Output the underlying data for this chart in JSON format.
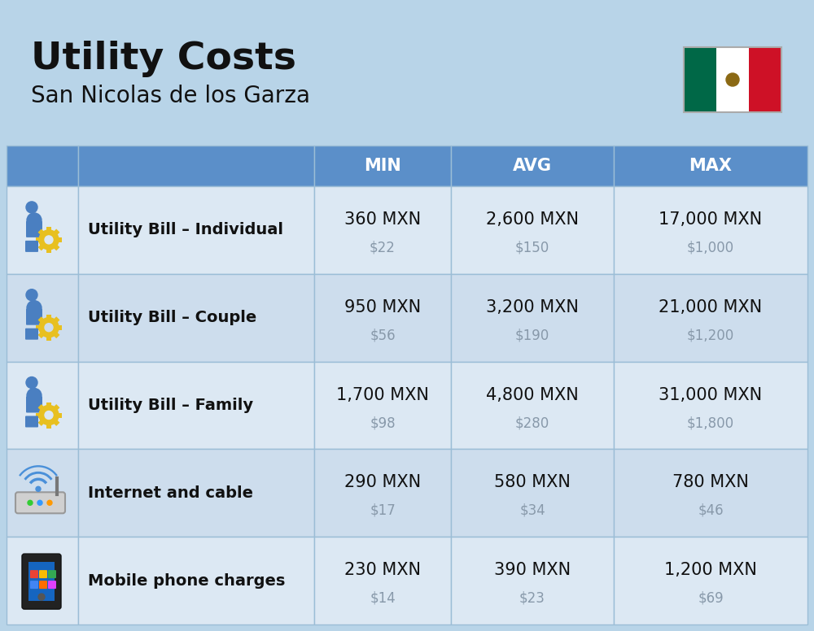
{
  "title": "Utility Costs",
  "subtitle": "San Nicolas de los Garza",
  "background_color": "#b8d4e8",
  "header_bg_color": "#5b8fc9",
  "header_text_color": "#ffffff",
  "row_bg_even": "#dce8f3",
  "row_bg_odd": "#cddded",
  "cell_border_color": "#9bbdd6",
  "col_headers": [
    "MIN",
    "AVG",
    "MAX"
  ],
  "rows": [
    {
      "label": "Utility Bill – Individual",
      "icon": "utility",
      "min_mxn": "360 MXN",
      "min_usd": "$22",
      "avg_mxn": "2,600 MXN",
      "avg_usd": "$150",
      "max_mxn": "17,000 MXN",
      "max_usd": "$1,000"
    },
    {
      "label": "Utility Bill – Couple",
      "icon": "utility",
      "min_mxn": "950 MXN",
      "min_usd": "$56",
      "avg_mxn": "3,200 MXN",
      "avg_usd": "$190",
      "max_mxn": "21,000 MXN",
      "max_usd": "$1,200"
    },
    {
      "label": "Utility Bill – Family",
      "icon": "utility",
      "min_mxn": "1,700 MXN",
      "min_usd": "$98",
      "avg_mxn": "4,800 MXN",
      "avg_usd": "$280",
      "max_mxn": "31,000 MXN",
      "max_usd": "$1,800"
    },
    {
      "label": "Internet and cable",
      "icon": "internet",
      "min_mxn": "290 MXN",
      "min_usd": "$17",
      "avg_mxn": "580 MXN",
      "avg_usd": "$34",
      "max_mxn": "780 MXN",
      "max_usd": "$46"
    },
    {
      "label": "Mobile phone charges",
      "icon": "mobile",
      "min_mxn": "230 MXN",
      "min_usd": "$14",
      "avg_mxn": "390 MXN",
      "avg_usd": "$23",
      "max_mxn": "1,200 MXN",
      "max_usd": "$69"
    }
  ],
  "title_fontsize": 34,
  "subtitle_fontsize": 20,
  "header_fontsize": 15,
  "label_fontsize": 14,
  "value_fontsize": 15,
  "usd_fontsize": 12,
  "usd_color": "#8899aa",
  "text_color": "#111111",
  "flag_green": "#006847",
  "flag_red": "#CE1126"
}
